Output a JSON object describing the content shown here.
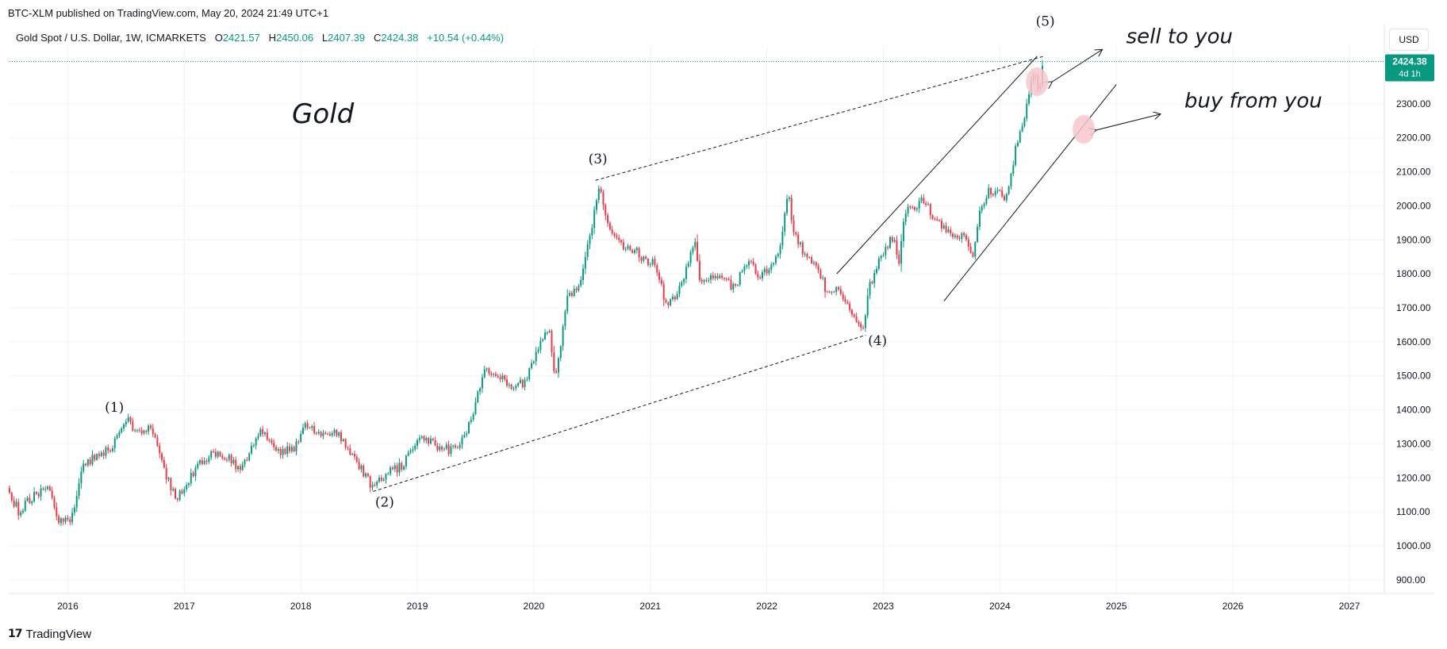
{
  "header": {
    "published": "BTC-XLM published on TradingView.com, May 20, 2024 21:49 UTC+1"
  },
  "legend": {
    "symbol": "Gold Spot / U.S. Dollar, 1W, ICMARKETS",
    "o_label": "O",
    "o_value": "2421.57",
    "h_label": "H",
    "h_value": "2450.06",
    "l_label": "L",
    "l_value": "2407.39",
    "c_label": "C",
    "c_value": "2424.38",
    "change": "+10.54 (+0.44%)"
  },
  "currency_button": "USD",
  "footer": {
    "logo_mark": "17",
    "logo_text": "TradingView"
  },
  "colors": {
    "up": "#089981",
    "down": "#f23645",
    "price_tag": "#089981",
    "grid": "#f0f3fa",
    "blob": "#f8c6cc"
  },
  "chart_data": {
    "type": "candlestick",
    "symbol": "Gold Spot / U.S. Dollar",
    "interval": "1W",
    "title": "Gold",
    "x_range": [
      2015.5,
      2027.3
    ],
    "y_range": [
      860,
      2470
    ],
    "y_scale": "linear",
    "grid": true,
    "x_ticks": [
      "2016",
      "2017",
      "2018",
      "2019",
      "2020",
      "2021",
      "2022",
      "2023",
      "2024",
      "2025",
      "2026",
      "2027"
    ],
    "y_ticks": [
      "900.00",
      "1000.00",
      "1100.00",
      "1200.00",
      "1300.00",
      "1400.00",
      "1500.00",
      "1600.00",
      "1700.00",
      "1800.00",
      "1900.00",
      "2000.00",
      "2100.00",
      "2200.00",
      "2300.00"
    ],
    "last_price": {
      "value": 2424.38,
      "label": "2424.38",
      "countdown": "4d 1h"
    },
    "price_path": [
      [
        2015.5,
        1170
      ],
      [
        2015.6,
        1100
      ],
      [
        2015.7,
        1140
      ],
      [
        2015.85,
        1170
      ],
      [
        2015.95,
        1065
      ],
      [
        2016.05,
        1085
      ],
      [
        2016.15,
        1240
      ],
      [
        2016.3,
        1270
      ],
      [
        2016.4,
        1290
      ],
      [
        2016.52,
        1375
      ],
      [
        2016.6,
        1340
      ],
      [
        2016.75,
        1340
      ],
      [
        2016.85,
        1220
      ],
      [
        2016.95,
        1140
      ],
      [
        2017.1,
        1220
      ],
      [
        2017.25,
        1270
      ],
      [
        2017.4,
        1260
      ],
      [
        2017.5,
        1220
      ],
      [
        2017.6,
        1290
      ],
      [
        2017.68,
        1350
      ],
      [
        2017.8,
        1280
      ],
      [
        2017.95,
        1280
      ],
      [
        2018.05,
        1350
      ],
      [
        2018.2,
        1330
      ],
      [
        2018.3,
        1340
      ],
      [
        2018.4,
        1300
      ],
      [
        2018.5,
        1250
      ],
      [
        2018.62,
        1180
      ],
      [
        2018.75,
        1210
      ],
      [
        2018.9,
        1240
      ],
      [
        2019.05,
        1320
      ],
      [
        2019.2,
        1290
      ],
      [
        2019.35,
        1280
      ],
      [
        2019.45,
        1340
      ],
      [
        2019.6,
        1510
      ],
      [
        2019.7,
        1510
      ],
      [
        2019.8,
        1470
      ],
      [
        2019.95,
        1480
      ],
      [
        2020.05,
        1580
      ],
      [
        2020.15,
        1640
      ],
      [
        2020.2,
        1480
      ],
      [
        2020.3,
        1720
      ],
      [
        2020.4,
        1760
      ],
      [
        2020.5,
        1900
      ],
      [
        2020.58,
        2060
      ],
      [
        2020.65,
        1940
      ],
      [
        2020.75,
        1890
      ],
      [
        2020.85,
        1880
      ],
      [
        2020.95,
        1850
      ],
      [
        2021.05,
        1830
      ],
      [
        2021.15,
        1720
      ],
      [
        2021.2,
        1710
      ],
      [
        2021.3,
        1790
      ],
      [
        2021.4,
        1890
      ],
      [
        2021.45,
        1770
      ],
      [
        2021.55,
        1800
      ],
      [
        2021.65,
        1780
      ],
      [
        2021.75,
        1760
      ],
      [
        2021.85,
        1840
      ],
      [
        2021.95,
        1790
      ],
      [
        2022.05,
        1820
      ],
      [
        2022.15,
        1900
      ],
      [
        2022.2,
        2050
      ],
      [
        2022.25,
        1920
      ],
      [
        2022.35,
        1850
      ],
      [
        2022.45,
        1830
      ],
      [
        2022.55,
        1730
      ],
      [
        2022.62,
        1760
      ],
      [
        2022.72,
        1700
      ],
      [
        2022.8,
        1640
      ],
      [
        2022.85,
        1650
      ],
      [
        2022.9,
        1760
      ],
      [
        2023.0,
        1850
      ],
      [
        2023.1,
        1910
      ],
      [
        2023.15,
        1830
      ],
      [
        2023.2,
        1980
      ],
      [
        2023.3,
        2000
      ],
      [
        2023.38,
        2020
      ],
      [
        2023.45,
        1960
      ],
      [
        2023.55,
        1930
      ],
      [
        2023.65,
        1900
      ],
      [
        2023.72,
        1920
      ],
      [
        2023.78,
        1840
      ],
      [
        2023.85,
        1990
      ],
      [
        2023.92,
        2040
      ],
      [
        2024.0,
        2050
      ],
      [
        2024.08,
        2020
      ],
      [
        2024.15,
        2160
      ],
      [
        2024.22,
        2250
      ],
      [
        2024.28,
        2350
      ],
      [
        2024.32,
        2390
      ],
      [
        2024.36,
        2330
      ],
      [
        2024.38,
        2420
      ]
    ],
    "annotations": [
      {
        "type": "text",
        "text": "Gold"
      },
      {
        "type": "label",
        "text": "(1)",
        "x": 2016.4,
        "y": 1394
      },
      {
        "type": "label",
        "text": "(2)",
        "x": 2018.72,
        "y": 1116
      },
      {
        "type": "label",
        "text": "(3)",
        "x": 2020.55,
        "y": 2125
      },
      {
        "type": "label",
        "text": "(4)",
        "x": 2022.95,
        "y": 1590
      },
      {
        "type": "label",
        "text": "(5)",
        "x": 2024.39,
        "y": 2530
      },
      {
        "type": "dashed-line",
        "from": [
          2018.62,
          1160
        ],
        "to": [
          2022.85,
          1620
        ]
      },
      {
        "type": "dashed-line",
        "from": [
          2020.53,
          2075
        ],
        "to": [
          2024.38,
          2440
        ]
      },
      {
        "type": "line",
        "from": [
          2022.6,
          1800
        ],
        "to": [
          2024.32,
          2440
        ]
      },
      {
        "type": "line",
        "from": [
          2023.52,
          1720
        ],
        "to": [
          2025.0,
          2357
        ]
      },
      {
        "type": "arrow",
        "text": "sell to you",
        "from": [
          2024.45,
          2365
        ],
        "to": [
          2024.88,
          2460
        ]
      },
      {
        "type": "arrow",
        "text": "buy from you",
        "from": [
          2024.83,
          2223
        ],
        "to": [
          2025.38,
          2270
        ]
      },
      {
        "type": "highlight",
        "x": 2024.32,
        "y": 2365
      },
      {
        "type": "highlight",
        "x": 2024.72,
        "y": 2225
      }
    ]
  }
}
